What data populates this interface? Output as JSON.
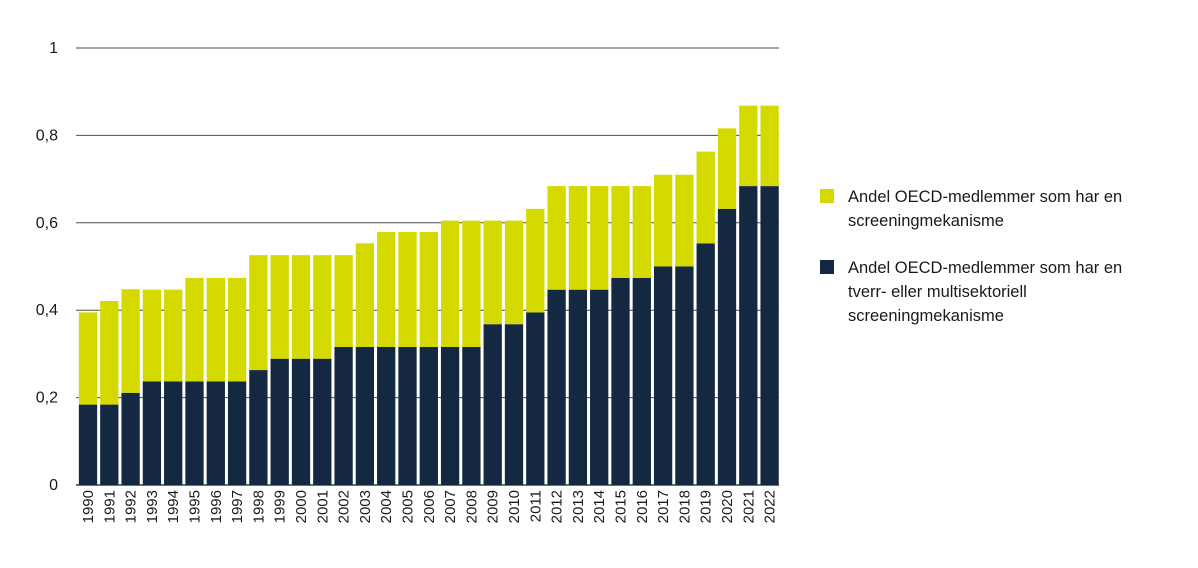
{
  "chart_data": {
    "type": "bar",
    "stacked": true,
    "categories": [
      "1990",
      "1991",
      "1992",
      "1993",
      "1994",
      "1995",
      "1996",
      "1997",
      "1998",
      "1999",
      "2000",
      "2001",
      "2002",
      "2003",
      "2004",
      "2005",
      "2006",
      "2007",
      "2008",
      "2009",
      "2010",
      "2011",
      "2012",
      "2013",
      "2014",
      "2015",
      "2016",
      "2017",
      "2018",
      "2019",
      "2020",
      "2021",
      "2022"
    ],
    "series": [
      {
        "name": "Andel OECD-medlemmer som har en tverr- eller multisektoriell screeningmekanisme",
        "color": "#142842",
        "values": [
          0.184,
          0.184,
          0.211,
          0.237,
          0.237,
          0.237,
          0.237,
          0.237,
          0.263,
          0.289,
          0.289,
          0.289,
          0.316,
          0.316,
          0.316,
          0.316,
          0.316,
          0.316,
          0.316,
          0.368,
          0.368,
          0.395,
          0.447,
          0.447,
          0.447,
          0.474,
          0.474,
          0.5,
          0.5,
          0.553,
          0.632,
          0.684,
          0.684
        ]
      },
      {
        "name": "Andel OECD-medlemmer som har en screeningmekanisme",
        "color": "#d4d900",
        "values": [
          0.211,
          0.237,
          0.237,
          0.21,
          0.21,
          0.237,
          0.237,
          0.237,
          0.263,
          0.237,
          0.237,
          0.237,
          0.21,
          0.237,
          0.263,
          0.263,
          0.263,
          0.289,
          0.289,
          0.237,
          0.237,
          0.237,
          0.237,
          0.237,
          0.237,
          0.21,
          0.21,
          0.21,
          0.21,
          0.21,
          0.184,
          0.184,
          0.184
        ]
      }
    ],
    "legend_entries": [
      {
        "lines": [
          "Andel OECD-medlemmer som har en",
          "screeningmekanisme"
        ],
        "color": "#d4d900"
      },
      {
        "lines": [
          "Andel OECD-medlemmer som har en",
          "tverr- eller multisektoriell",
          "screeningmekanisme"
        ],
        "color": "#142842"
      }
    ],
    "yticks": [
      {
        "value": 0,
        "label": "0"
      },
      {
        "value": 0.2,
        "label": "0,2"
      },
      {
        "value": 0.4,
        "label": "0,4"
      },
      {
        "value": 0.6,
        "label": "0,6"
      },
      {
        "value": 0.8,
        "label": "0,8"
      },
      {
        "value": 1,
        "label": "1"
      }
    ],
    "ylim": [
      0,
      1
    ],
    "grid": true,
    "title": "",
    "xlabel": "",
    "ylabel": "",
    "legend_position": "right"
  }
}
